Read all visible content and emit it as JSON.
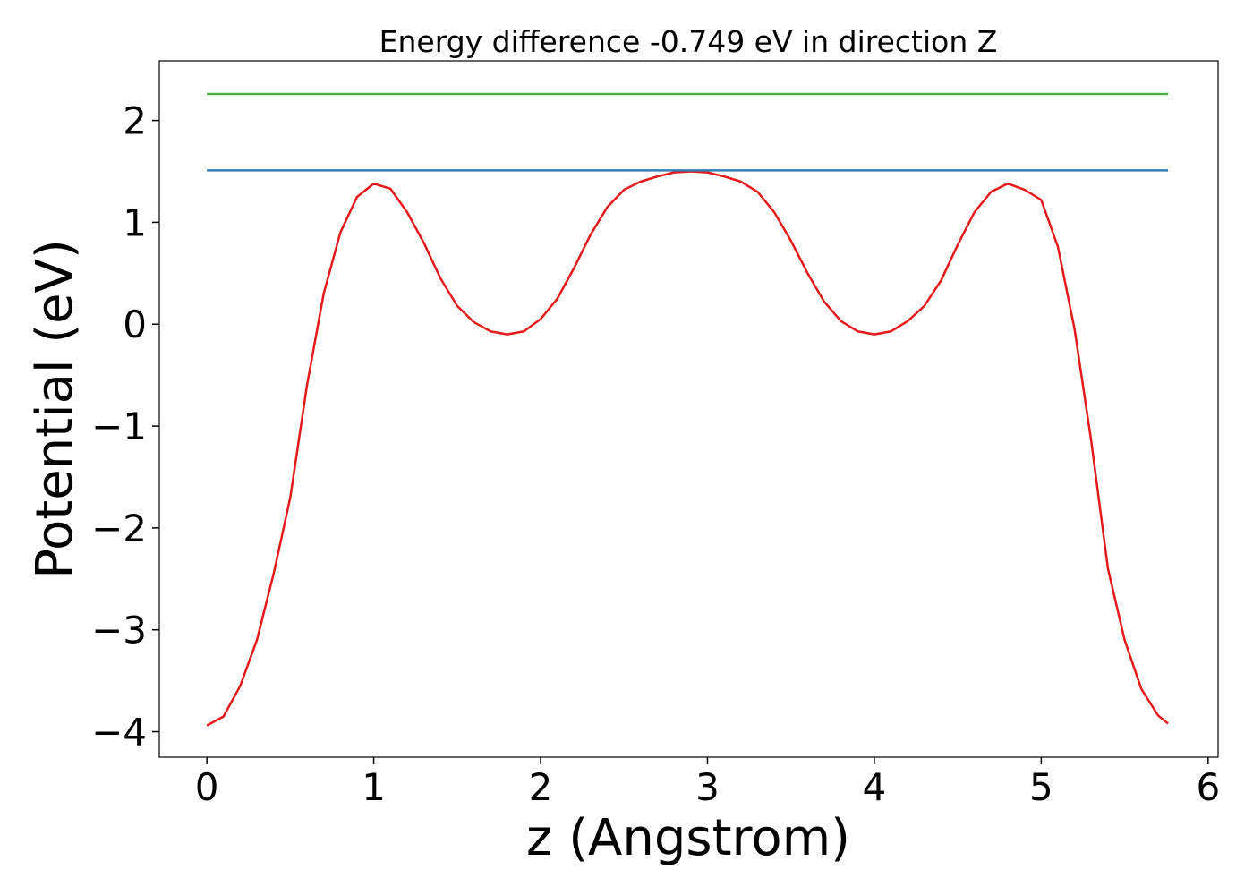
{
  "chart_data": {
    "type": "line",
    "title": "Energy difference -0.749 eV in direction Z",
    "xlabel": "z (Angstrom)",
    "ylabel": "Potential (eV)",
    "xlim": [
      -0.285,
      6.06
    ],
    "ylim": [
      -4.25,
      2.585
    ],
    "xticks": [
      0,
      1,
      2,
      3,
      4,
      5,
      6
    ],
    "yticks": [
      {
        "value": -4,
        "label": "−4"
      },
      {
        "value": -3,
        "label": "−3"
      },
      {
        "value": -2,
        "label": "−2"
      },
      {
        "value": -1,
        "label": "−1"
      },
      0,
      1,
      2
    ],
    "grid": false,
    "series": [
      {
        "color": "#e41a1c",
        "x": [
          0,
          0.1,
          0.2,
          0.3,
          0.4,
          0.5,
          0.6,
          0.7,
          0.8,
          0.9,
          1.0,
          1.1,
          1.2,
          1.3,
          1.4,
          1.5,
          1.6,
          1.7,
          1.8,
          1.9,
          2.0,
          2.1,
          2.2,
          2.3,
          2.4,
          2.5,
          2.6,
          2.7,
          2.8,
          2.9,
          3.0,
          3.1,
          3.2,
          3.3,
          3.4,
          3.5,
          3.6,
          3.7,
          3.8,
          3.9,
          4.0,
          4.1,
          4.2,
          4.3,
          4.4,
          4.5,
          4.6,
          4.7,
          4.8,
          4.9,
          5.0,
          5.1,
          5.2,
          5.3,
          5.4,
          5.5,
          5.6,
          5.7,
          5.76
        ],
        "values": [
          -3.94,
          -3.85,
          -3.55,
          -3.1,
          -2.45,
          -1.7,
          -0.6,
          0.3,
          0.9,
          1.25,
          1.38,
          1.33,
          1.1,
          0.8,
          0.45,
          0.18,
          0.02,
          -0.07,
          -0.1,
          -0.07,
          0.05,
          0.25,
          0.55,
          0.88,
          1.15,
          1.32,
          1.4,
          1.45,
          1.49,
          1.5,
          1.49,
          1.45,
          1.4,
          1.3,
          1.1,
          0.82,
          0.5,
          0.22,
          0.03,
          -0.07,
          -0.1,
          -0.07,
          0.03,
          0.18,
          0.43,
          0.78,
          1.1,
          1.3,
          1.38,
          1.32,
          1.22,
          0.76,
          -0.05,
          -1.15,
          -2.4,
          -3.1,
          -3.58,
          -3.84,
          -3.92
        ]
      },
      {
        "color": "#377eb8",
        "x": [
          0,
          5.76
        ],
        "values": [
          1.51,
          1.51
        ]
      },
      {
        "color": "#4daf4a",
        "x": [
          0,
          5.76
        ],
        "values": [
          2.26,
          2.26
        ]
      }
    ]
  }
}
